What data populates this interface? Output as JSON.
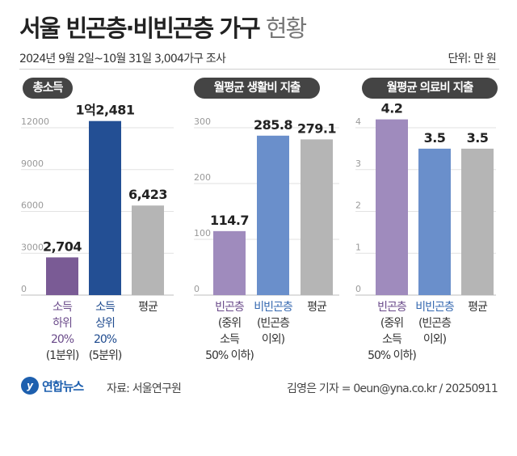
{
  "header": {
    "title_main": "서울 빈곤층·비빈곤층 가구",
    "title_light": "현황",
    "subtitle": "2024년 9월 2일~10월 31일 3,004가구 조사",
    "unit": "단위: 만 원"
  },
  "footer": {
    "logo_text": "연합뉴스",
    "source": "자료: 서울연구원",
    "credit": "김영은 기자 = 0eun@yna.co.kr / 20250911"
  },
  "colors": {
    "purple": "#7a5b95",
    "navy": "#234f94",
    "gray": "#b5b5b5",
    "lavender": "#9f8bbd",
    "blue": "#6a8fcb",
    "purple_label": "#6a4a8a",
    "navy_label": "#1e4a8e",
    "blue_label": "#3568b0"
  },
  "chart_data": [
    {
      "type": "bar",
      "title": "총소득",
      "ylim": [
        0,
        12000
      ],
      "yticks": [
        0,
        3000,
        6000,
        9000,
        12000
      ],
      "ytick_labels": [
        "0",
        "3000",
        "6000",
        "9000",
        "12000"
      ],
      "categories": [
        [
          "소득",
          "하위",
          "20%",
          "(1분위)"
        ],
        [
          "소득",
          "상위",
          "20%",
          "(5분위)"
        ],
        [
          "평균"
        ]
      ],
      "values": [
        2704,
        12481,
        6423
      ],
      "value_labels": [
        "2,704",
        "1억2,481",
        "6,423"
      ]
    },
    {
      "type": "bar",
      "title": "월평균 생활비 지출",
      "ylim": [
        0,
        300
      ],
      "yticks": [
        0,
        100,
        200,
        300
      ],
      "ytick_labels": [
        "0",
        "100",
        "200",
        "300"
      ],
      "categories": [
        [
          "빈곤층",
          "(중위",
          "소득",
          "50% 이하)"
        ],
        [
          "비빈곤층",
          "(빈곤층",
          "이외)"
        ],
        [
          "평균"
        ]
      ],
      "values": [
        114.7,
        285.8,
        279.1
      ],
      "value_labels": [
        "114.7",
        "285.8",
        "279.1"
      ]
    },
    {
      "type": "bar",
      "title": "월평균 의료비 지출",
      "ylim": [
        0,
        4
      ],
      "yticks": [
        0,
        1,
        2,
        3,
        4
      ],
      "ytick_labels": [
        "0",
        "1",
        "2",
        "3",
        "4"
      ],
      "categories": [
        [
          "빈곤층",
          "(중위",
          "소득",
          "50% 이하)"
        ],
        [
          "비빈곤층",
          "(빈곤층",
          "이외)"
        ],
        [
          "평균"
        ]
      ],
      "values": [
        4.2,
        3.5,
        3.5
      ],
      "value_labels": [
        "4.2",
        "3.5",
        "3.5"
      ]
    }
  ]
}
